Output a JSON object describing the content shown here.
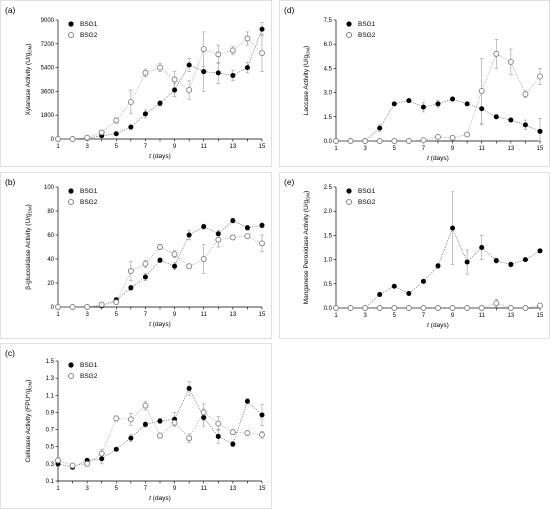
{
  "chart_data": [
    {
      "type": "scatter",
      "panel": "(a)",
      "ylabel_parts": [
        "Xylanase Activity (U/g",
        "DM",
        ")"
      ],
      "xlabel_parts": [
        "t",
        " (days)"
      ],
      "xlim": [
        1,
        15
      ],
      "xticks": [
        1,
        3,
        5,
        7,
        9,
        11,
        13,
        15
      ],
      "ylim": [
        0,
        9000
      ],
      "yticks": [
        0,
        1800,
        3600,
        5400,
        7200,
        9000
      ],
      "legend": "top-left",
      "series": [
        {
          "name": "BSG1",
          "marker": "filled",
          "x": [
            1,
            2,
            3,
            4,
            5,
            6,
            7,
            8,
            9,
            10,
            11,
            12,
            13,
            14,
            15
          ],
          "y": [
            0,
            0,
            50,
            250,
            400,
            900,
            1900,
            2700,
            3700,
            5600,
            5100,
            5000,
            4800,
            5400,
            8300
          ],
          "err": [
            0,
            0,
            0,
            100,
            100,
            150,
            300,
            200,
            500,
            500,
            1500,
            800,
            400,
            400,
            500
          ]
        },
        {
          "name": "BSG2",
          "marker": "open",
          "x": [
            1,
            2,
            3,
            4,
            5,
            6,
            7,
            8,
            9,
            10,
            11,
            12,
            13,
            14,
            15
          ],
          "y": [
            0,
            0,
            100,
            500,
            1400,
            2800,
            5000,
            5400,
            4500,
            3700,
            6800,
            6400,
            6700,
            7600,
            6500
          ],
          "err": [
            0,
            0,
            50,
            100,
            200,
            900,
            300,
            300,
            600,
            700,
            1300,
            700,
            300,
            500,
            1400
          ]
        }
      ]
    },
    {
      "type": "scatter",
      "panel": "(b)",
      "ylabel_parts": [
        "β-glucosidase Activity (U/g",
        "DM",
        ")"
      ],
      "xlabel_parts": [
        "t",
        " (days)"
      ],
      "xlim": [
        1,
        15
      ],
      "xticks": [
        1,
        3,
        5,
        7,
        9,
        11,
        13,
        15
      ],
      "ylim": [
        0,
        100
      ],
      "yticks": [
        0,
        20,
        40,
        60,
        80,
        100
      ],
      "legend": "top-left",
      "series": [
        {
          "name": "BSG1",
          "marker": "filled",
          "x": [
            1,
            2,
            3,
            4,
            5,
            6,
            7,
            8,
            9,
            10,
            11,
            12,
            13,
            14,
            15
          ],
          "y": [
            0,
            0,
            0,
            1,
            6,
            16,
            25,
            39,
            34,
            60,
            67,
            61,
            72,
            66,
            68
          ],
          "err": [
            0,
            0,
            0,
            0,
            1,
            2,
            3,
            2,
            3,
            4,
            2,
            3,
            2,
            2,
            2
          ]
        },
        {
          "name": "BSG2",
          "marker": "open",
          "x": [
            1,
            2,
            3,
            4,
            5,
            6,
            7,
            8,
            9,
            10,
            11,
            12,
            13,
            14,
            15
          ],
          "y": [
            0,
            0,
            0,
            2,
            4,
            30,
            36,
            50,
            44,
            34,
            40,
            56,
            58,
            59,
            53
          ],
          "err": [
            0,
            0,
            0,
            1,
            1,
            8,
            3,
            2,
            3,
            2,
            12,
            6,
            2,
            2,
            7
          ]
        }
      ]
    },
    {
      "type": "scatter",
      "panel": "(c)",
      "ylabel_parts": [
        "Cellulase Activity (FPU*/g",
        "DM",
        ")"
      ],
      "xlabel_parts": [
        "t",
        " (days)"
      ],
      "xlim": [
        1,
        15
      ],
      "xticks": [
        1,
        3,
        5,
        7,
        9,
        11,
        13,
        15
      ],
      "ylim": [
        0.1,
        1.5
      ],
      "yticks": [
        0.1,
        0.3,
        0.5,
        0.7,
        0.9,
        1.1,
        1.3,
        1.5
      ],
      "legend": "top-left",
      "series": [
        {
          "name": "BSG1",
          "marker": "filled",
          "x": [
            1,
            2,
            3,
            4,
            5,
            6,
            7,
            8,
            9,
            10,
            11,
            12,
            13,
            14,
            15
          ],
          "y": [
            0.3,
            0.26,
            0.34,
            0.36,
            0.47,
            0.6,
            0.76,
            0.8,
            0.82,
            1.18,
            0.84,
            0.62,
            0.53,
            1.03,
            0.87
          ],
          "err": [
            0.03,
            0.02,
            0.02,
            0.06,
            0.02,
            0.04,
            0.03,
            0.03,
            0.08,
            0.08,
            0.1,
            0.08,
            0.03,
            0.03,
            0.12
          ]
        },
        {
          "name": "BSG2",
          "marker": "open",
          "x": [
            1,
            2,
            3,
            4,
            5,
            6,
            7,
            8,
            9,
            10,
            11,
            12,
            13,
            14,
            15
          ],
          "y": [
            0.34,
            0.28,
            0.3,
            0.42,
            0.83,
            0.82,
            0.98,
            0.63,
            0.78,
            0.6,
            0.9,
            0.77,
            0.67,
            0.66,
            0.64
          ],
          "err": [
            0.03,
            0.02,
            0.02,
            0.05,
            0.03,
            0.07,
            0.05,
            0.03,
            0.04,
            0.05,
            0.1,
            0.08,
            0.03,
            0.02,
            0.04
          ]
        }
      ]
    },
    {
      "type": "scatter",
      "panel": "(d)",
      "ylabel_parts": [
        "Laccase Activity (U/g",
        "DM",
        ")"
      ],
      "xlabel_parts": [
        "t",
        " (days)"
      ],
      "xlim": [
        1,
        15
      ],
      "xticks": [
        1,
        3,
        5,
        7,
        9,
        11,
        13,
        15
      ],
      "ylim": [
        0,
        7.5
      ],
      "yticks": [
        0.0,
        1.5,
        3.0,
        4.5,
        6.0,
        7.5
      ],
      "ytick_labels": [
        "0.0",
        "1.5",
        "3.0",
        "4.5",
        "6.0",
        "7.5"
      ],
      "legend": "top-left",
      "series": [
        {
          "name": "BSG1",
          "marker": "filled",
          "x": [
            1,
            2,
            3,
            4,
            5,
            6,
            7,
            8,
            9,
            10,
            11,
            12,
            13,
            14,
            15
          ],
          "y": [
            0,
            0,
            0,
            0.8,
            2.3,
            2.5,
            2.1,
            2.3,
            2.6,
            2.3,
            2.0,
            1.5,
            1.3,
            1.0,
            0.6
          ],
          "err": [
            0,
            0,
            0,
            0.2,
            0.1,
            0.1,
            0.3,
            0.2,
            0.1,
            0.1,
            1.0,
            0.1,
            0.1,
            0.3,
            0.8
          ]
        },
        {
          "name": "BSG2",
          "marker": "open",
          "x": [
            1,
            2,
            3,
            4,
            5,
            6,
            7,
            8,
            9,
            10,
            11,
            12,
            13,
            14,
            15
          ],
          "y": [
            0,
            0,
            0,
            0,
            0,
            0,
            0.05,
            0.25,
            0.2,
            0.4,
            3.1,
            5.4,
            4.9,
            2.9,
            4.0
          ],
          "err": [
            0,
            0,
            0,
            0,
            0,
            0,
            0,
            0,
            0,
            0,
            2.0,
            0.9,
            0.8,
            0.2,
            0.5
          ]
        }
      ]
    },
    {
      "type": "scatter",
      "panel": "(e)",
      "ylabel_parts": [
        "Manganese Peroxidase Activity (U/g",
        "DM",
        ")"
      ],
      "xlabel_parts": [
        "t",
        " (days)"
      ],
      "xlim": [
        1,
        15
      ],
      "xticks": [
        1,
        3,
        5,
        7,
        9,
        11,
        13,
        15
      ],
      "ylim": [
        0,
        2.5
      ],
      "yticks": [
        0.0,
        0.5,
        1.0,
        1.5,
        2.0,
        2.5
      ],
      "ytick_labels": [
        "0.0",
        "0.5",
        "1.0",
        "1.5",
        "2.0",
        "2.5"
      ],
      "legend": "top-left",
      "series": [
        {
          "name": "BSG1",
          "marker": "filled",
          "x": [
            1,
            2,
            3,
            4,
            5,
            6,
            7,
            8,
            9,
            10,
            11,
            12,
            13,
            14,
            15
          ],
          "y": [
            0,
            0,
            0,
            0.28,
            0.45,
            0.3,
            0.55,
            0.87,
            1.65,
            0.95,
            1.25,
            0.98,
            0.9,
            1.0,
            1.18
          ],
          "err": [
            0,
            0,
            0,
            0.02,
            0.03,
            0.02,
            0.03,
            0.05,
            0.75,
            0.25,
            0.25,
            0.05,
            0.05,
            0.03,
            0.03
          ]
        },
        {
          "name": "BSG2",
          "marker": "open",
          "x": [
            1,
            2,
            3,
            4,
            5,
            6,
            7,
            8,
            9,
            10,
            11,
            12,
            13,
            14,
            15
          ],
          "y": [
            0,
            0,
            0,
            0,
            0,
            0,
            0,
            0,
            0,
            0,
            0,
            0.1,
            0,
            0,
            0.05
          ],
          "err": [
            0,
            0,
            0,
            0,
            0,
            0,
            0,
            0,
            0,
            0,
            0,
            0.08,
            0,
            0,
            0.04
          ]
        }
      ]
    }
  ]
}
